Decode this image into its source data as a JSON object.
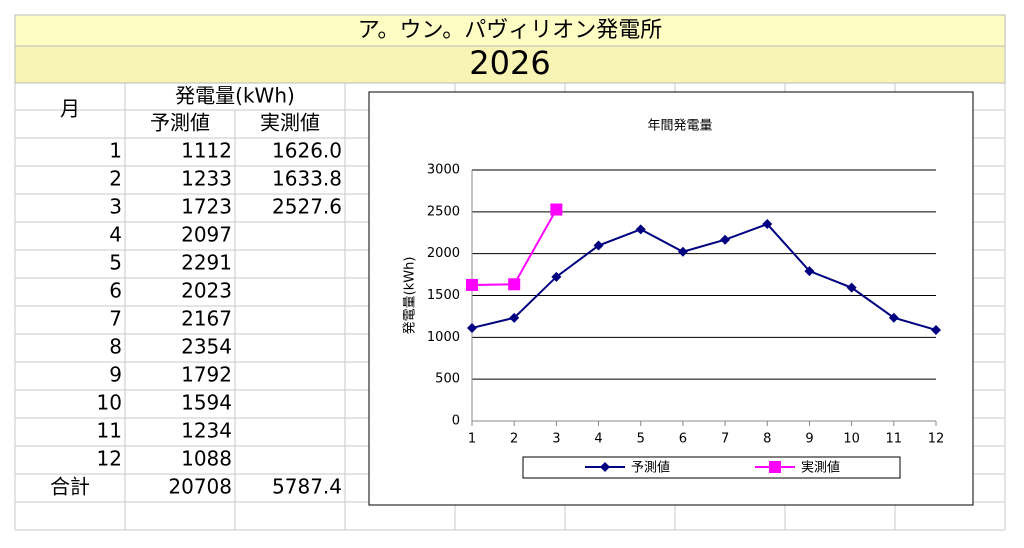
{
  "header": {
    "title": "ア。ウン。パヴィリオン発電所",
    "year": "2026"
  },
  "table": {
    "month_header": "月",
    "group_header": "発電量(kWh)",
    "columns": [
      "予測値",
      "実測値"
    ],
    "rows": [
      [
        "1",
        "1112",
        "1626.0"
      ],
      [
        "2",
        "1233",
        "1633.8"
      ],
      [
        "3",
        "1723",
        "2527.6"
      ],
      [
        "4",
        "2097"
      ],
      [
        "5",
        "2291"
      ],
      [
        "6",
        "2023"
      ],
      [
        "7",
        "2167"
      ],
      [
        "8",
        "2354"
      ],
      [
        "9",
        "1792"
      ],
      [
        "10",
        "1594"
      ],
      [
        "11",
        "1234"
      ],
      [
        "12",
        "1088"
      ]
    ],
    "total": {
      "label": "合計",
      "values": [
        "20708",
        "5787.4"
      ]
    }
  },
  "chart_data": {
    "type": "line",
    "title": "年間発電量",
    "y_label": "発電量(kWh)",
    "categories": [
      1,
      2,
      3,
      4,
      5,
      6,
      7,
      8,
      9,
      10,
      11,
      12
    ],
    "series": [
      {
        "name": "予測値",
        "color": "#000080",
        "marker": "diamond",
        "values": [
          1112,
          1233,
          1723,
          2097,
          2291,
          2023,
          2167,
          2354,
          1792,
          1594,
          1234,
          1088
        ]
      },
      {
        "name": "実測値",
        "color": "#ff00ff",
        "marker": "square",
        "values": [
          1626,
          1633.8,
          2527.6,
          null,
          null,
          null,
          null,
          null,
          null,
          null,
          null,
          null
        ]
      }
    ],
    "ylim": [
      0,
      3000
    ],
    "yticks": [
      0,
      500,
      1000,
      1500,
      2000,
      2500,
      3000
    ],
    "grid": true,
    "legend": "bottom"
  }
}
